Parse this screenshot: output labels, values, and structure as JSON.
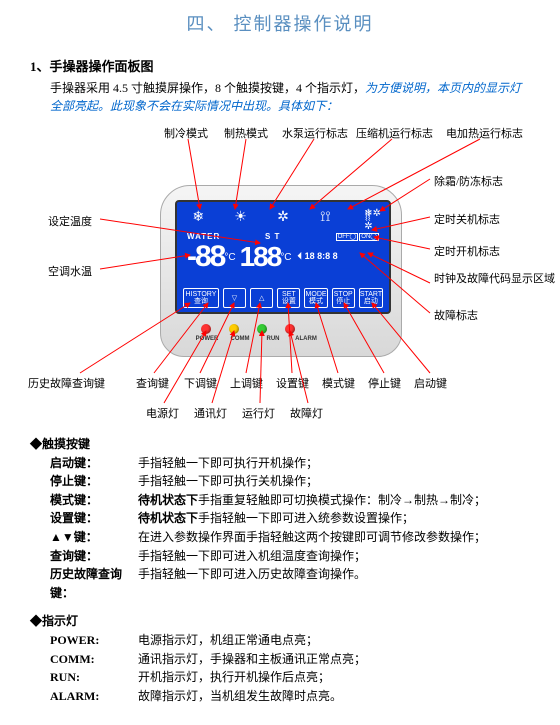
{
  "title": "四、 控制器操作说明",
  "section1": {
    "heading": "1、手操器操作面板图",
    "intro_black": "手操器采用 4.5 寸触摸屏操作，8 个触摸按键，4 个指示灯，",
    "intro_blue": "为方便说明，本页内的显示灯全部亮起。此现象不会在实际情况中出现。具体如下："
  },
  "callouts_top": [
    "制冷模式",
    "制热模式",
    "水泵运行标志",
    "压缩机运行标志",
    "电加热运行标志"
  ],
  "callouts_left": [
    "设定温度",
    "空调水温",
    "历史故障查询键"
  ],
  "callouts_right": [
    "除霜/防冻标志",
    "定时关机标志",
    "定时开机标志",
    "时钟及故障代码显示区域",
    "故障标志"
  ],
  "callouts_bottom1": [
    "查询键",
    "下调键",
    "上调键",
    "设置键",
    "模式键",
    "停止键",
    "启动键"
  ],
  "callouts_bottom2": [
    "电源灯",
    "通讯灯",
    "运行灯",
    "故障灯"
  ],
  "lcd": {
    "water_label": "WATER",
    "st_label": "S T",
    "seg_water": "-88",
    "seg_st": "188",
    "unit": "°C",
    "timer": "18 8:8 8",
    "timer_off": "OFF◯",
    "timer_on": "ON◯",
    "icons_row": [
      "❄",
      "☀",
      "✲",
      "⟟⟟",
      "⦚⦚"
    ],
    "side_icons": [
      "❄✲",
      "✲"
    ],
    "buttons": [
      "HISTORY\n查询",
      "▽",
      "△",
      "SET\n设置",
      "MODE\n模式",
      "STOP\n停止",
      "START\n启动"
    ]
  },
  "leds": [
    {
      "color": "#ff3333",
      "label": "POWER"
    },
    {
      "color": "#ffcc00",
      "label": "COMM"
    },
    {
      "color": "#33cc33",
      "label": "RUN"
    },
    {
      "color": "#ff3333",
      "label": "ALARM"
    }
  ],
  "touch_section": {
    "heading": "◆触摸按键",
    "items": [
      {
        "k": "启动键：",
        "v": "手指轻触一下即可执行开机操作；"
      },
      {
        "k": "停止键：",
        "v": "手指轻触一下即可执行关机操作；"
      },
      {
        "k": "模式键：",
        "v": "<b>待机状态下</b>手指重复轻触即可切换模式操作：制冷→制热→制冷；"
      },
      {
        "k": "设置键：",
        "v": "<b>待机状态下</b>手指轻触一下即可进入统参数设置操作；"
      },
      {
        "k": "▲▼键：",
        "v": "在进入参数操作界面手指轻触这两个按键即可调节修改参数操作；"
      },
      {
        "k": "查询键：",
        "v": "手指轻触一下即可进入机组温度查询操作；"
      },
      {
        "k": "历史故障查询键：",
        "v": "手指轻触一下即可进入历史故障查询操作。"
      }
    ]
  },
  "led_section": {
    "heading": "◆指示灯",
    "items": [
      {
        "k": "POWER:",
        "v": "电源指示灯，机组正常通电点亮；"
      },
      {
        "k": "COMM:",
        "v": "通讯指示灯，手操器和主板通讯正常点亮；"
      },
      {
        "k": "RUN:",
        "v": "开机指示灯，执行开机操作后点亮；"
      },
      {
        "k": "ALARM:",
        "v": "故障指示灯，当机组发生故障时点亮。"
      }
    ]
  },
  "colors": {
    "title": "#5a8fc0",
    "blue_text": "#0066cc",
    "lcd_bg": "#0a3fd6",
    "arrow": "#ff0000"
  }
}
